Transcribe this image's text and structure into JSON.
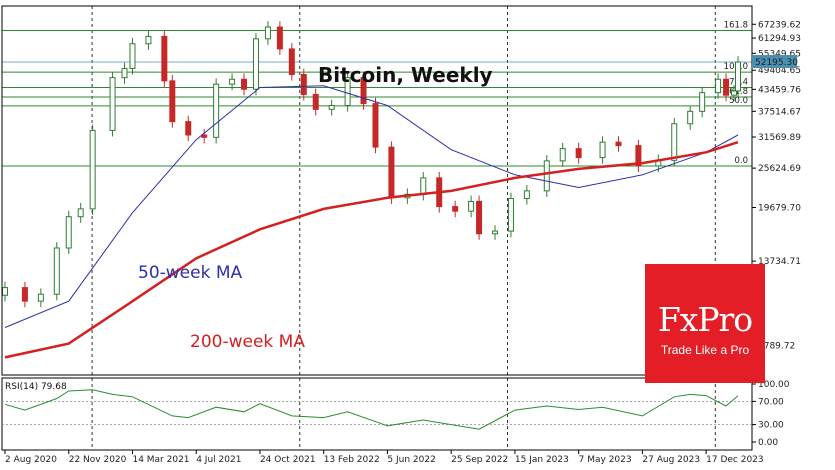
{
  "chart_data": {
    "type": "candlestick",
    "title": "Bitcoin, Weekly",
    "interval": "weekly",
    "y_scale": "log",
    "price_axis_ticks": [
      "67239.62",
      "61294.93",
      "55349.65",
      "49404.65",
      "43459.76",
      "37514.67",
      "31569.89",
      "25624.69",
      "19679.70",
      "13734.71",
      "7789.72"
    ],
    "x_axis_ticks": [
      "2 Aug 2020",
      "22 Nov 2020",
      "14 Mar 2021",
      "4 Jul 2021",
      "24 Oct 2021",
      "13 Feb 2022",
      "5 Jun 2022",
      "25 Sep 2022",
      "15 Jan 2023",
      "7 May 2023",
      "27 Aug 2023",
      "17 Dec 2023"
    ],
    "period_separators_at": [
      "2 Jan 2021",
      "2 Jan 2022",
      "2 Jan 2023",
      "2 Jan 2024"
    ],
    "current_price": "52195.30",
    "price_series_weekly_close": [
      {
        "date": "2 Aug 2020",
        "close": 11500
      },
      {
        "date": "6 Sep 2020",
        "close": 10500
      },
      {
        "date": "4 Oct 2020",
        "close": 11000
      },
      {
        "date": "1 Nov 2020",
        "close": 15000
      },
      {
        "date": "22 Nov 2020",
        "close": 18500
      },
      {
        "date": "13 Dec 2020",
        "close": 19500
      },
      {
        "date": "3 Jan 2021",
        "close": 33000
      },
      {
        "date": "7 Feb 2021",
        "close": 47000
      },
      {
        "date": "28 Feb 2021",
        "close": 50000
      },
      {
        "date": "14 Mar 2021",
        "close": 59000
      },
      {
        "date": "11 Apr 2021",
        "close": 62000
      },
      {
        "date": "9 May 2021",
        "close": 46000
      },
      {
        "date": "23 May 2021",
        "close": 35000
      },
      {
        "date": "20 Jun 2021",
        "close": 32000
      },
      {
        "date": "18 Jul 2021",
        "close": 31500
      },
      {
        "date": "8 Aug 2021",
        "close": 45000
      },
      {
        "date": "5 Sep 2021",
        "close": 46500
      },
      {
        "date": "26 Sep 2021",
        "close": 43500
      },
      {
        "date": "17 Oct 2021",
        "close": 61000
      },
      {
        "date": "7 Nov 2021",
        "close": 66000
      },
      {
        "date": "28 Nov 2021",
        "close": 57000
      },
      {
        "date": "19 Dec 2021",
        "close": 48000
      },
      {
        "date": "9 Jan 2022",
        "close": 42000
      },
      {
        "date": "30 Jan 2022",
        "close": 38000
      },
      {
        "date": "27 Feb 2022",
        "close": 39000
      },
      {
        "date": "27 Mar 2022",
        "close": 47000
      },
      {
        "date": "24 Apr 2022",
        "close": 39500
      },
      {
        "date": "15 May 2022",
        "close": 29500
      },
      {
        "date": "12 Jun 2022",
        "close": 21000
      },
      {
        "date": "10 Jul 2022",
        "close": 21500
      },
      {
        "date": "7 Aug 2022",
        "close": 24000
      },
      {
        "date": "4 Sep 2022",
        "close": 19800
      },
      {
        "date": "2 Oct 2022",
        "close": 19200
      },
      {
        "date": "30 Oct 2022",
        "close": 20500
      },
      {
        "date": "13 Nov 2022",
        "close": 16500
      },
      {
        "date": "11 Dec 2022",
        "close": 16800
      },
      {
        "date": "8 Jan 2023",
        "close": 20900
      },
      {
        "date": "5 Feb 2023",
        "close": 22000
      },
      {
        "date": "12 Mar 2023",
        "close": 26900
      },
      {
        "date": "9 Apr 2023",
        "close": 29200
      },
      {
        "date": "7 May 2023",
        "close": 27500
      },
      {
        "date": "18 Jun 2023",
        "close": 30500
      },
      {
        "date": "16 Jul 2023",
        "close": 29800
      },
      {
        "date": "20 Aug 2023",
        "close": 26000
      },
      {
        "date": "24 Sep 2023",
        "close": 27000
      },
      {
        "date": "22 Oct 2023",
        "close": 34500
      },
      {
        "date": "19 Nov 2023",
        "close": 37500
      },
      {
        "date": "10 Dec 2023",
        "close": 42500
      },
      {
        "date": "7 Jan 2024",
        "close": 46500
      },
      {
        "date": "21 Jan 2024",
        "close": 41800
      },
      {
        "date": "4 Feb 2024",
        "close": 43000
      },
      {
        "date": "11 Feb 2024",
        "close": 52195.3
      }
    ],
    "moving_averages": [
      {
        "name": "50-week MA",
        "color": "#2b2fa8"
      },
      {
        "name": "200-week MA",
        "color": "#d42020"
      }
    ],
    "ma50_approx": [
      {
        "date": "2 Aug 2020",
        "value": 8800
      },
      {
        "date": "22 Nov 2020",
        "value": 10500
      },
      {
        "date": "14 Mar 2021",
        "value": 19000
      },
      {
        "date": "4 Jul 2021",
        "value": 31000
      },
      {
        "date": "24 Oct 2021",
        "value": 44000
      },
      {
        "date": "13 Feb 2022",
        "value": 44500
      },
      {
        "date": "5 Jun 2022",
        "value": 39000
      },
      {
        "date": "25 Sep 2022",
        "value": 29000
      },
      {
        "date": "15 Jan 2023",
        "value": 24500
      },
      {
        "date": "7 May 2023",
        "value": 22500
      },
      {
        "date": "27 Aug 2023",
        "value": 24500
      },
      {
        "date": "17 Dec 2023",
        "value": 28500
      },
      {
        "date": "11 Feb 2024",
        "value": 32000
      }
    ],
    "ma200_approx": [
      {
        "date": "2 Aug 2020",
        "value": 7200
      },
      {
        "date": "22 Nov 2020",
        "value": 7900
      },
      {
        "date": "14 Mar 2021",
        "value": 10500
      },
      {
        "date": "4 Jul 2021",
        "value": 14000
      },
      {
        "date": "24 Oct 2021",
        "value": 17000
      },
      {
        "date": "13 Feb 2022",
        "value": 19500
      },
      {
        "date": "5 Jun 2022",
        "value": 21000
      },
      {
        "date": "25 Sep 2022",
        "value": 22000
      },
      {
        "date": "15 Jan 2023",
        "value": 24000
      },
      {
        "date": "7 May 2023",
        "value": 25500
      },
      {
        "date": "27 Aug 2023",
        "value": 26500
      },
      {
        "date": "17 Dec 2023",
        "value": 28500
      },
      {
        "date": "11 Feb 2024",
        "value": 30500
      }
    ],
    "fibonacci_levels": [
      {
        "label": "161.8",
        "price": 64500
      },
      {
        "label": "100.0",
        "price": 48800
      },
      {
        "label": "76.4",
        "price": 44000
      },
      {
        "label": "61.8",
        "price": 41300
      },
      {
        "label": "50.0",
        "price": 38900
      },
      {
        "label": "0.0",
        "price": 26000
      }
    ],
    "rsi": {
      "label": "RSI(14) 79.68",
      "levels": [
        "100.00",
        "70.00",
        "30.00",
        "0.00"
      ],
      "series_approx": [
        {
          "date": "2 Aug 2020",
          "value": 65
        },
        {
          "date": "6 Sep 2020",
          "value": 55
        },
        {
          "date": "1 Nov 2020",
          "value": 75
        },
        {
          "date": "22 Nov 2020",
          "value": 88
        },
        {
          "date": "3 Jan 2021",
          "value": 90
        },
        {
          "date": "7 Feb 2021",
          "value": 82
        },
        {
          "date": "14 Mar 2021",
          "value": 78
        },
        {
          "date": "23 May 2021",
          "value": 45
        },
        {
          "date": "20 Jun 2021",
          "value": 42
        },
        {
          "date": "8 Aug 2021",
          "value": 60
        },
        {
          "date": "26 Sep 2021",
          "value": 52
        },
        {
          "date": "24 Oct 2021",
          "value": 66
        },
        {
          "date": "19 Dec 2021",
          "value": 45
        },
        {
          "date": "13 Feb 2022",
          "value": 42
        },
        {
          "date": "27 Mar 2022",
          "value": 52
        },
        {
          "date": "5 Jun 2022",
          "value": 28
        },
        {
          "date": "7 Aug 2022",
          "value": 38
        },
        {
          "date": "25 Sep 2022",
          "value": 30
        },
        {
          "date": "13 Nov 2022",
          "value": 22
        },
        {
          "date": "15 Jan 2023",
          "value": 55
        },
        {
          "date": "12 Mar 2023",
          "value": 62
        },
        {
          "date": "7 May 2023",
          "value": 56
        },
        {
          "date": "18 Jun 2023",
          "value": 60
        },
        {
          "date": "27 Aug 2023",
          "value": 45
        },
        {
          "date": "22 Oct 2023",
          "value": 78
        },
        {
          "date": "19 Nov 2023",
          "value": 82
        },
        {
          "date": "17 Dec 2023",
          "value": 80
        },
        {
          "date": "21 Jan 2024",
          "value": 62
        },
        {
          "date": "11 Feb 2024",
          "value": 79.68
        }
      ]
    },
    "annotations": [
      "50-week MA",
      "200-week MA"
    ]
  },
  "logo": {
    "brand": "FxPro",
    "tagline": "Trade Like a Pro"
  },
  "colors": {
    "background": "#ffffff",
    "up": "#2e7d32",
    "down": "#c62828",
    "fib_line": "#2e8b2e",
    "ma50": "#2b2fa8",
    "ma200": "#d42020",
    "brand": "#e41e26"
  }
}
